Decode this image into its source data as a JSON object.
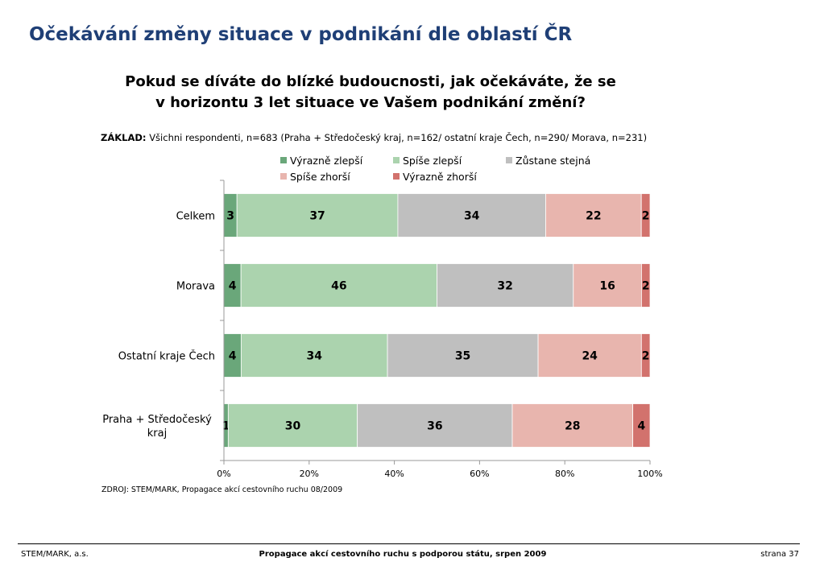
{
  "page": {
    "title": "Očekávání změny situace v podnikání dle oblastí ČR",
    "question_line1": "Pokud se díváte do blízké budoucnosti, jak očekáváte, že se",
    "question_line2": "v horizontu 3 let situace ve Vašem podnikání změní?",
    "base_label": "ZÁKLAD:",
    "base_text": "Všichni respondenti, n=683 (Praha + Středočeský kraj, n=162/ ostatní kraje Čech, n=290/ Morava, n=231)",
    "source": "ZDROJ: STEM/MARK, Propagace akcí cestovního ruchu 08/2009"
  },
  "footer": {
    "left": "STEM/MARK, a.s.",
    "center": "Propagace akcí cestovního ruchu s podporou státu, srpen 2009",
    "right": "strana 37"
  },
  "chart_data": {
    "type": "bar",
    "orientation": "horizontal",
    "stacked": "percent",
    "categories": [
      "Celkem",
      "Morava",
      "Ostatní kraje Čech",
      "Praha + Středočeský kraj"
    ],
    "series": [
      {
        "name": "Výrazně zlepší",
        "color": "#6aa77a",
        "values": [
          3,
          4,
          4,
          1
        ]
      },
      {
        "name": "Spíše zlepší",
        "color": "#abd3ae",
        "values": [
          37,
          46,
          34,
          30
        ]
      },
      {
        "name": "Zůstane stejná",
        "color": "#bfbfbf",
        "values": [
          34,
          32,
          35,
          36
        ]
      },
      {
        "name": "Spíše zhorší",
        "color": "#e8b5ae",
        "values": [
          22,
          16,
          24,
          28
        ]
      },
      {
        "name": "Výrazně zhorší",
        "color": "#d2726d",
        "values": [
          2,
          2,
          2,
          4
        ]
      }
    ],
    "x_ticks": [
      "0%",
      "20%",
      "40%",
      "60%",
      "80%",
      "100%"
    ],
    "xlim": [
      0,
      100
    ],
    "legend_position": "top",
    "grid": false,
    "data_labels": true
  }
}
